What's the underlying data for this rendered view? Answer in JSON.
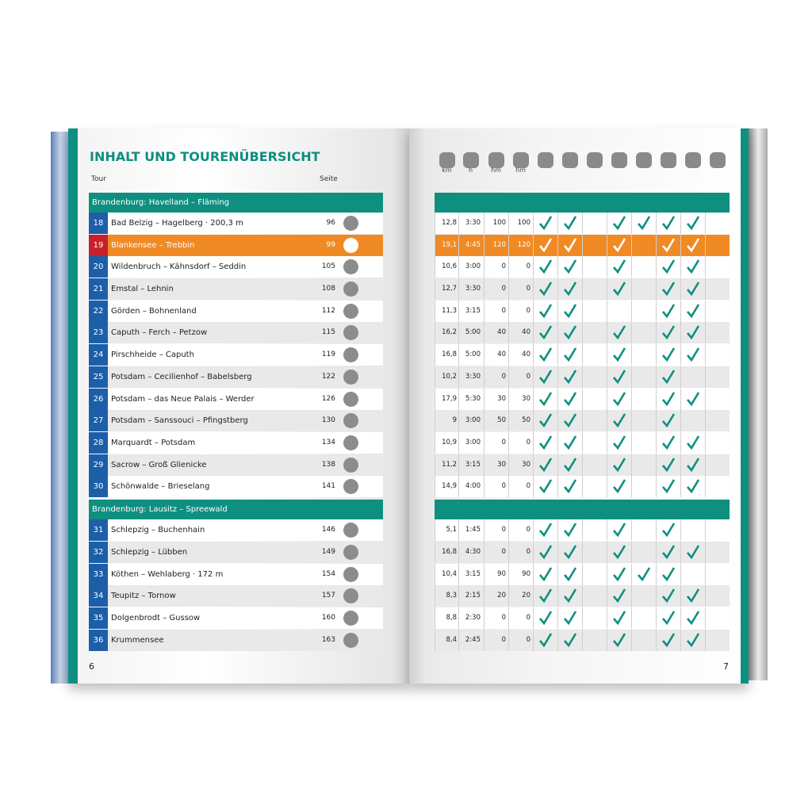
{
  "header": {
    "title": "INHALT UND TOURENÜBERSICHT",
    "col_tour": "Tour",
    "col_page": "Seite",
    "units": [
      "km",
      "h",
      "hm",
      "hm"
    ]
  },
  "sections": [
    {
      "title": "Brandenburg: Havelland – Fläming",
      "rows": [
        {
          "nr": "18",
          "name": "Bad Belzig – Hagelberg · 200,3 m",
          "page": "96",
          "km": "12,8",
          "time": "3:30",
          "up": "100",
          "down": "100",
          "checks": [
            true,
            true,
            false,
            true,
            true,
            true,
            true,
            false
          ]
        },
        {
          "nr": "19",
          "name": "Blankensee – Trebbin",
          "page": "99",
          "km": "19,1",
          "time": "4:45",
          "up": "120",
          "down": "120",
          "checks": [
            true,
            true,
            false,
            true,
            false,
            true,
            true,
            false
          ],
          "highlight": true
        },
        {
          "nr": "20",
          "name": "Wildenbruch – Kähnsdorf – Seddin",
          "page": "105",
          "km": "10,6",
          "time": "3:00",
          "up": "0",
          "down": "0",
          "checks": [
            true,
            true,
            false,
            true,
            false,
            true,
            true,
            false
          ]
        },
        {
          "nr": "21",
          "name": "Emstal – Lehnin",
          "page": "108",
          "km": "12,7",
          "time": "3:30",
          "up": "0",
          "down": "0",
          "checks": [
            true,
            true,
            false,
            true,
            false,
            true,
            true,
            false
          ]
        },
        {
          "nr": "22",
          "name": "Görden – Bohnenland",
          "page": "112",
          "km": "11,3",
          "time": "3:15",
          "up": "0",
          "down": "0",
          "checks": [
            true,
            true,
            false,
            false,
            false,
            true,
            true,
            false
          ]
        },
        {
          "nr": "23",
          "name": "Caputh – Ferch – Petzow",
          "page": "115",
          "km": "16,2",
          "time": "5:00",
          "up": "40",
          "down": "40",
          "checks": [
            true,
            true,
            false,
            true,
            false,
            true,
            true,
            false
          ]
        },
        {
          "nr": "24",
          "name": "Pirschheide – Caputh",
          "page": "119",
          "km": "16,8",
          "time": "5:00",
          "up": "40",
          "down": "40",
          "checks": [
            true,
            true,
            false,
            true,
            false,
            true,
            true,
            false
          ]
        },
        {
          "nr": "25",
          "name": "Potsdam – Cecilienhof – Babelsberg",
          "page": "122",
          "km": "10,2",
          "time": "3:30",
          "up": "0",
          "down": "0",
          "checks": [
            true,
            true,
            false,
            true,
            false,
            true,
            false,
            false
          ]
        },
        {
          "nr": "26",
          "name": "Potsdam – das Neue Palais – Werder",
          "page": "126",
          "km": "17,9",
          "time": "5:30",
          "up": "30",
          "down": "30",
          "checks": [
            true,
            true,
            false,
            true,
            false,
            true,
            true,
            false
          ]
        },
        {
          "nr": "27",
          "name": "Potsdam – Sanssouci – Pfingstberg",
          "page": "130",
          "km": "9",
          "time": "3:00",
          "up": "50",
          "down": "50",
          "checks": [
            true,
            true,
            false,
            true,
            false,
            true,
            false,
            false
          ]
        },
        {
          "nr": "28",
          "name": "Marquardt – Potsdam",
          "page": "134",
          "km": "10,9",
          "time": "3:00",
          "up": "0",
          "down": "0",
          "checks": [
            true,
            true,
            false,
            true,
            false,
            true,
            true,
            false
          ]
        },
        {
          "nr": "29",
          "name": "Sacrow – Groß Glienicke",
          "page": "138",
          "km": "11,2",
          "time": "3:15",
          "up": "30",
          "down": "30",
          "checks": [
            true,
            true,
            false,
            true,
            false,
            true,
            true,
            false
          ]
        },
        {
          "nr": "30",
          "name": "Schönwalde – Brieselang",
          "page": "141",
          "km": "14,9",
          "time": "4:00",
          "up": "0",
          "down": "0",
          "checks": [
            true,
            true,
            false,
            true,
            false,
            true,
            true,
            false
          ]
        }
      ]
    },
    {
      "title": "Brandenburg: Lausitz – Spreewald",
      "rows": [
        {
          "nr": "31",
          "name": "Schlepzig – Buchenhain",
          "page": "146",
          "km": "5,1",
          "time": "1:45",
          "up": "0",
          "down": "0",
          "checks": [
            true,
            true,
            false,
            true,
            false,
            true,
            false,
            false
          ]
        },
        {
          "nr": "32",
          "name": "Schlepzig – Lübben",
          "page": "149",
          "km": "16,8",
          "time": "4:30",
          "up": "0",
          "down": "0",
          "checks": [
            true,
            true,
            false,
            true,
            false,
            true,
            true,
            false
          ]
        },
        {
          "nr": "33",
          "name": "Köthen – Wehlaberg · 172 m",
          "page": "154",
          "km": "10,4",
          "time": "3:15",
          "up": "90",
          "down": "90",
          "checks": [
            true,
            true,
            false,
            true,
            true,
            true,
            false,
            false
          ]
        },
        {
          "nr": "34",
          "name": "Teupitz – Tornow",
          "page": "157",
          "km": "8,3",
          "time": "2:15",
          "up": "20",
          "down": "20",
          "checks": [
            true,
            true,
            false,
            true,
            false,
            true,
            true,
            false
          ]
        },
        {
          "nr": "35",
          "name": "Dolgenbrodt – Gussow",
          "page": "160",
          "km": "8,8",
          "time": "2:30",
          "up": "0",
          "down": "0",
          "checks": [
            true,
            true,
            false,
            true,
            false,
            true,
            true,
            false
          ]
        },
        {
          "nr": "36",
          "name": "Krummensee",
          "page": "163",
          "km": "8,4",
          "time": "2:45",
          "up": "0",
          "down": "0",
          "checks": [
            true,
            true,
            false,
            true,
            false,
            true,
            true,
            false
          ]
        }
      ]
    }
  ],
  "page_left": "6",
  "page_right": "7"
}
